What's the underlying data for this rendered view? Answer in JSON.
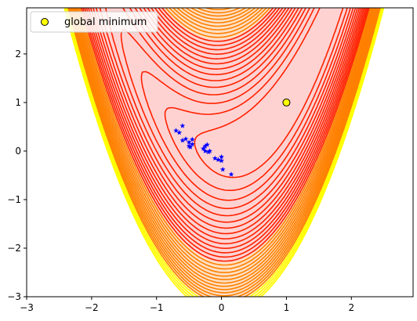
{
  "chart_data": {
    "type": "contour",
    "xlim": [
      -3,
      2.95
    ],
    "ylim": [
      -3,
      2.95
    ],
    "x_ticks": [
      -3,
      -2,
      -1,
      0,
      1,
      2
    ],
    "y_ticks": [
      -3,
      -2,
      -1,
      0,
      1,
      2
    ],
    "x_tick_labels": [
      "−3",
      "−2",
      "−1",
      "0",
      "1",
      "2"
    ],
    "y_tick_labels": [
      "−3",
      "−2",
      "−1",
      "0",
      "1",
      "2"
    ],
    "contour_levels": [
      2,
      3.5,
      5,
      6.5,
      8,
      9.5,
      11,
      12.5,
      14,
      15.5,
      17,
      18.5,
      20,
      21.5,
      23,
      24.5,
      26,
      27.5,
      29,
      30.5,
      32,
      33.5,
      35,
      36.5,
      38,
      39.5,
      41,
      42.5,
      44,
      45.5
    ],
    "fill_colors": [
      "#ffd2d2",
      "#ffe0c4",
      "#fff0cc"
    ],
    "line_colors": {
      "inner": "#ff2200",
      "middle": "#ff8000",
      "outer": "#ffff00"
    },
    "band_levels": [
      22,
      40
    ],
    "samples": [
      {
        "x": -0.6,
        "y": 0.52
      },
      {
        "x": -0.7,
        "y": 0.42
      },
      {
        "x": -0.65,
        "y": 0.38
      },
      {
        "x": -0.55,
        "y": 0.25
      },
      {
        "x": -0.6,
        "y": 0.22
      },
      {
        "x": -0.45,
        "y": 0.24
      },
      {
        "x": -0.5,
        "y": 0.18
      },
      {
        "x": -0.45,
        "y": 0.14
      },
      {
        "x": -0.5,
        "y": 0.1
      },
      {
        "x": -0.48,
        "y": 0.08
      },
      {
        "x": -0.25,
        "y": 0.1
      },
      {
        "x": -0.22,
        "y": 0.13
      },
      {
        "x": -0.28,
        "y": 0.05
      },
      {
        "x": -0.25,
        "y": 0.0
      },
      {
        "x": -0.2,
        "y": -0.02
      },
      {
        "x": -0.18,
        "y": 0.0
      },
      {
        "x": -0.1,
        "y": -0.15
      },
      {
        "x": -0.05,
        "y": -0.18
      },
      {
        "x": 0.0,
        "y": -0.12
      },
      {
        "x": 0.0,
        "y": -0.2
      },
      {
        "x": 0.02,
        "y": -0.38
      },
      {
        "x": 0.15,
        "y": -0.48
      }
    ],
    "global_minimum": {
      "x": 1,
      "y": 1,
      "label": "global minimum",
      "color": "#ffff00"
    },
    "marker_color": "#0000ff",
    "legend": {
      "placement": "upper left",
      "entries": [
        "global minimum"
      ]
    }
  }
}
